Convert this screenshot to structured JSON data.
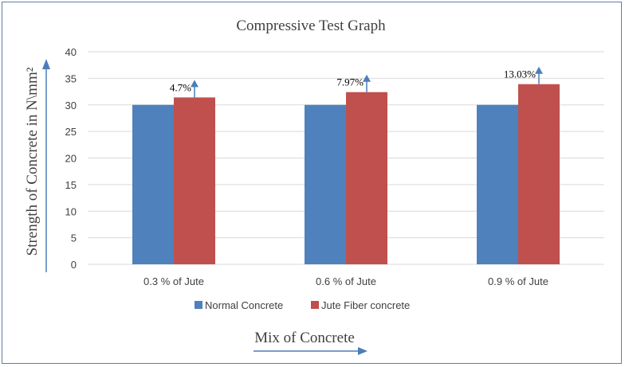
{
  "chart_data": {
    "type": "bar",
    "title": "Compressive Test Graph",
    "xlabel": "Mix of Concrete",
    "ylabel": "Strength of Concrete in N\\mm²",
    "categories": [
      "0.3 % of Jute",
      "0.6 % of Jute",
      "0.9 % of Jute"
    ],
    "series": [
      {
        "name": "Normal Concrete",
        "color": "#4f81bd",
        "values": [
          30,
          30,
          30
        ]
      },
      {
        "name": "Jute Fiber concrete",
        "color": "#c0504d",
        "values": [
          31.4,
          32.4,
          33.9
        ]
      }
    ],
    "annotations": [
      "4.7%",
      "7.97%",
      "13.03%"
    ],
    "ylim": [
      0,
      40
    ],
    "yticks": [
      0,
      5,
      10,
      15,
      20,
      25,
      30,
      35,
      40
    ],
    "grid": true,
    "legend_position": "bottom",
    "arrow_color": "#4a7ebb"
  }
}
